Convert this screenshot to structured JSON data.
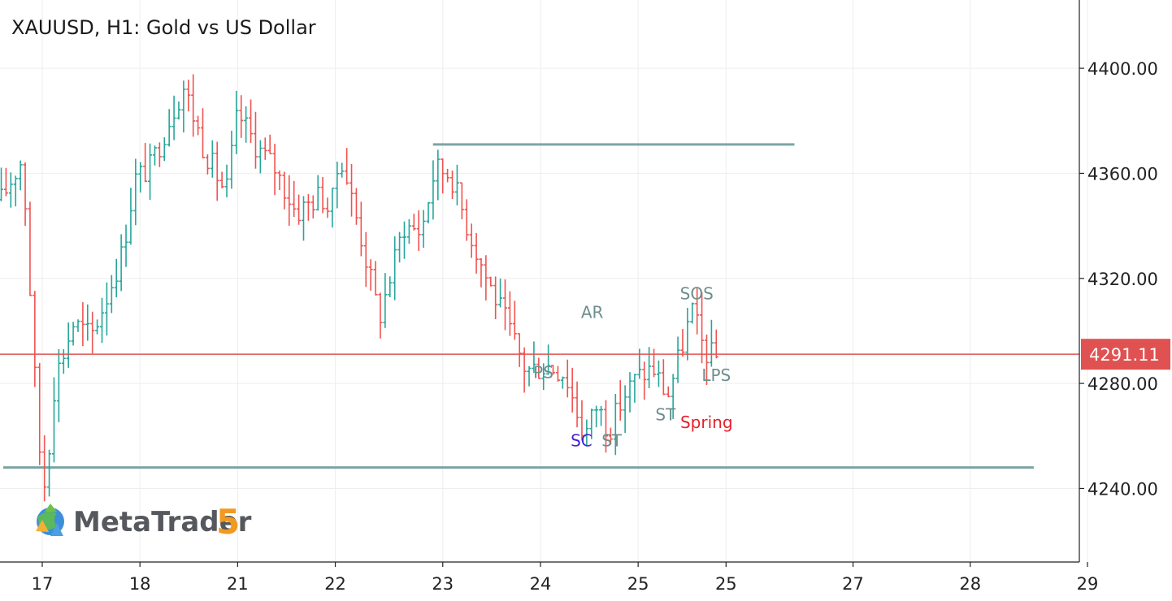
{
  "title": "XAUUSD, H1: Gold vs US Dollar",
  "logo": {
    "brand": "MetaTrader",
    "version": "5"
  },
  "colors": {
    "up": "#26a69a",
    "down": "#ef5350",
    "level_line": "#7ba4a4",
    "price_line": "#e05252",
    "grid": "#eeeeee",
    "axis": "#222222",
    "ann_gray": "#6e8e8e",
    "ann_red": "#e8202a",
    "ann_blue": "#4a1fd6"
  },
  "chart_data": {
    "type": "candlestick",
    "symbol": "XAUUSD",
    "timeframe": "H1",
    "current_price": 4291.11,
    "current_price_label": "4291.11",
    "ylim": [
      4212,
      4426
    ],
    "y_ticks": [
      {
        "value": 4240,
        "label": "4240.00"
      },
      {
        "value": 4280,
        "label": "4280.00"
      },
      {
        "value": 4320,
        "label": "4320.00"
      },
      {
        "value": 4360,
        "label": "4360.00"
      },
      {
        "value": 4400,
        "label": "4400.00"
      }
    ],
    "xlim": [
      0,
      10.9
    ],
    "x_ticks": [
      {
        "x": 0.1,
        "label": "17"
      },
      {
        "x": 1.1,
        "label": "18"
      },
      {
        "x": 2.1,
        "label": "21"
      },
      {
        "x": 3.1,
        "label": "22"
      },
      {
        "x": 4.2,
        "label": "23"
      },
      {
        "x": 5.2,
        "label": "24"
      },
      {
        "x": 6.2,
        "label": "25"
      },
      {
        "x": 7.1,
        "label": "25"
      },
      {
        "x": 8.4,
        "label": "27"
      },
      {
        "x": 9.6,
        "label": "28"
      },
      {
        "x": 10.8,
        "label": "29"
      }
    ],
    "levels": [
      {
        "name": "resistance",
        "price": 4371,
        "x_start": 4.1,
        "x_end": 7.8
      },
      {
        "name": "support",
        "price": 4248,
        "x_start": -0.3,
        "x_end": 10.25
      }
    ],
    "annotations": [
      {
        "text": "SOS",
        "x": 6.8,
        "price": 4312,
        "color": "ann_gray"
      },
      {
        "text": "AR",
        "x": 5.73,
        "price": 4305,
        "color": "ann_gray"
      },
      {
        "text": "PS",
        "x": 5.23,
        "price": 4282,
        "color": "ann_gray"
      },
      {
        "text": "LPS",
        "x": 7.0,
        "price": 4281,
        "color": "ann_gray"
      },
      {
        "text": "ST",
        "x": 6.48,
        "price": 4266,
        "color": "ann_gray"
      },
      {
        "text": "Spring",
        "x": 6.9,
        "price": 4263,
        "color": "ann_red"
      },
      {
        "text": "SC",
        "x": 5.62,
        "price": 4256,
        "color": "ann_blue"
      },
      {
        "text": "ST",
        "x": 5.93,
        "price": 4256,
        "color": "ann_gray"
      }
    ],
    "anchors": [
      {
        "x": -0.32,
        "price": 4350
      },
      {
        "x": -0.1,
        "price": 4366
      },
      {
        "x": 0.06,
        "price": 4258
      },
      {
        "x": 0.13,
        "price": 4240
      },
      {
        "x": 0.23,
        "price": 4282
      },
      {
        "x": 0.42,
        "price": 4303
      },
      {
        "x": 0.6,
        "price": 4298
      },
      {
        "x": 0.75,
        "price": 4312
      },
      {
        "x": 0.92,
        "price": 4330
      },
      {
        "x": 1.05,
        "price": 4358
      },
      {
        "x": 1.2,
        "price": 4362
      },
      {
        "x": 1.45,
        "price": 4385
      },
      {
        "x": 1.55,
        "price": 4393
      },
      {
        "x": 1.75,
        "price": 4370
      },
      {
        "x": 1.98,
        "price": 4352
      },
      {
        "x": 2.1,
        "price": 4383
      },
      {
        "x": 2.3,
        "price": 4370
      },
      {
        "x": 2.48,
        "price": 4362
      },
      {
        "x": 2.7,
        "price": 4345
      },
      {
        "x": 2.95,
        "price": 4352
      },
      {
        "x": 3.05,
        "price": 4345
      },
      {
        "x": 3.15,
        "price": 4368
      },
      {
        "x": 3.35,
        "price": 4338
      },
      {
        "x": 3.55,
        "price": 4305
      },
      {
        "x": 3.8,
        "price": 4340
      },
      {
        "x": 3.98,
        "price": 4338
      },
      {
        "x": 4.12,
        "price": 4362
      },
      {
        "x": 4.28,
        "price": 4360
      },
      {
        "x": 4.45,
        "price": 4340
      },
      {
        "x": 4.65,
        "price": 4320
      },
      {
        "x": 4.83,
        "price": 4305
      },
      {
        "x": 5.05,
        "price": 4285
      },
      {
        "x": 5.28,
        "price": 4287
      },
      {
        "x": 5.45,
        "price": 4284
      },
      {
        "x": 5.65,
        "price": 4260
      },
      {
        "x": 5.78,
        "price": 4272
      },
      {
        "x": 5.9,
        "price": 4262
      },
      {
        "x": 6.05,
        "price": 4275
      },
      {
        "x": 6.18,
        "price": 4282
      },
      {
        "x": 6.35,
        "price": 4286
      },
      {
        "x": 6.5,
        "price": 4275
      },
      {
        "x": 6.62,
        "price": 4290
      },
      {
        "x": 6.75,
        "price": 4308
      },
      {
        "x": 6.88,
        "price": 4292
      },
      {
        "x": 7.0,
        "price": 4290
      }
    ],
    "candle_x_start": -0.32,
    "candle_x_end": 7.0,
    "candle_count": 150,
    "seed": 17
  }
}
